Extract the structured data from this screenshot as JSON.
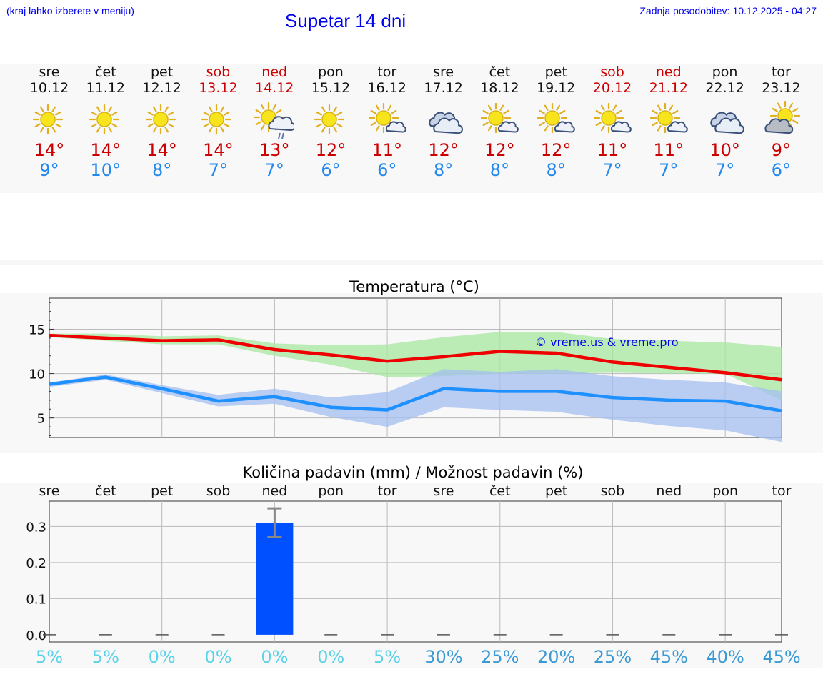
{
  "header": {
    "menu_hint": "(kraj lahko izberete v meniju)",
    "title": "Supetar 14 dni",
    "update_label": "Zadnja posodobitev:",
    "update_value": "10.12.2025 - 04:27"
  },
  "days": [
    {
      "name": "sre",
      "date": "10.12",
      "icon": "sunny-icon",
      "hi": "14°",
      "lo": "9°",
      "weekend": false
    },
    {
      "name": "čet",
      "date": "11.12",
      "icon": "sunny-icon",
      "hi": "14°",
      "lo": "10°",
      "weekend": false
    },
    {
      "name": "pet",
      "date": "12.12",
      "icon": "sunny-icon",
      "hi": "14°",
      "lo": "8°",
      "weekend": false
    },
    {
      "name": "sob",
      "date": "13.12",
      "icon": "sunny-icon",
      "hi": "14°",
      "lo": "7°",
      "weekend": true
    },
    {
      "name": "ned",
      "date": "14.12",
      "icon": "sun-cloud-rain-icon",
      "hi": "13°",
      "lo": "7°",
      "weekend": true
    },
    {
      "name": "pon",
      "date": "15.12",
      "icon": "sunny-icon",
      "hi": "12°",
      "lo": "6°",
      "weekend": false
    },
    {
      "name": "tor",
      "date": "16.12",
      "icon": "sun-small-cloud-icon",
      "hi": "11°",
      "lo": "6°",
      "weekend": false
    },
    {
      "name": "sre",
      "date": "17.12",
      "icon": "cloudy-icon",
      "hi": "12°",
      "lo": "8°",
      "weekend": false
    },
    {
      "name": "čet",
      "date": "18.12",
      "icon": "sun-small-cloud-icon",
      "hi": "12°",
      "lo": "8°",
      "weekend": false
    },
    {
      "name": "pet",
      "date": "19.12",
      "icon": "sun-small-cloud-icon",
      "hi": "12°",
      "lo": "8°",
      "weekend": false
    },
    {
      "name": "sob",
      "date": "20.12",
      "icon": "sun-small-cloud-icon",
      "hi": "11°",
      "lo": "7°",
      "weekend": true
    },
    {
      "name": "ned",
      "date": "21.12",
      "icon": "sun-small-cloud-icon",
      "hi": "11°",
      "lo": "7°",
      "weekend": true
    },
    {
      "name": "pon",
      "date": "22.12",
      "icon": "cloudy-icon",
      "hi": "10°",
      "lo": "7°",
      "weekend": false
    },
    {
      "name": "tor",
      "date": "23.12",
      "icon": "sun-behind-cloud-icon",
      "hi": "9°",
      "lo": "6°",
      "weekend": false
    }
  ],
  "colors": {
    "max_line": "#ee0000",
    "min_line": "#1e90ff",
    "max_band": "#a8e8a0",
    "min_band": "#a4bff0",
    "bar": "#0050ff",
    "watermark": "#0000ee",
    "pct_low": "#5ad2e8",
    "pct_high": "#3a9ad6"
  },
  "chart_data": [
    {
      "type": "line",
      "title": "Temperatura (°C)",
      "categories": [
        "sre",
        "čet",
        "pet",
        "sob",
        "ned",
        "pon",
        "tor",
        "sre",
        "čet",
        "pet",
        "sob",
        "ned",
        "pon",
        "tor"
      ],
      "yticks": [
        5,
        10,
        15
      ],
      "ylim": [
        2.8,
        18.5
      ],
      "watermark": "© vreme.us & vreme.pro",
      "series": [
        {
          "name": "max",
          "values": [
            14.3,
            14.0,
            13.7,
            13.8,
            12.7,
            12.1,
            11.4,
            11.9,
            12.5,
            12.3,
            11.3,
            10.7,
            10.1,
            9.3
          ]
        },
        {
          "name": "min",
          "values": [
            8.8,
            9.6,
            8.3,
            6.9,
            7.4,
            6.2,
            5.9,
            8.3,
            8.0,
            8.0,
            7.3,
            7.0,
            6.9,
            5.8
          ]
        },
        {
          "name": "max_upper",
          "values": [
            14.5,
            14.5,
            14.2,
            14.3,
            13.4,
            13.2,
            13.3,
            14.1,
            14.7,
            14.7,
            13.9,
            13.7,
            13.5,
            13.0
          ]
        },
        {
          "name": "max_lower",
          "values": [
            14.1,
            13.7,
            13.3,
            13.3,
            12.0,
            11.0,
            9.6,
            9.7,
            10.0,
            10.0,
            10.1,
            10.0,
            10.0,
            7.0
          ]
        },
        {
          "name": "min_upper",
          "values": [
            9.0,
            9.9,
            8.7,
            7.6,
            8.3,
            7.3,
            7.9,
            10.5,
            10.2,
            10.5,
            9.7,
            9.3,
            9.0,
            8.0
          ]
        },
        {
          "name": "min_lower",
          "values": [
            8.5,
            9.3,
            7.8,
            6.3,
            6.6,
            5.1,
            4.0,
            6.2,
            5.9,
            5.7,
            4.8,
            4.1,
            3.6,
            2.3
          ]
        }
      ]
    },
    {
      "type": "bar",
      "title": "Količina padavin (mm) / Možnost padavin (%)",
      "categories": [
        "sre",
        "čet",
        "pet",
        "sob",
        "ned",
        "pon",
        "tor",
        "sre",
        "čet",
        "pet",
        "sob",
        "ned",
        "pon",
        "tor"
      ],
      "values": [
        0,
        0,
        0,
        0,
        0.31,
        0,
        0,
        0,
        0,
        0,
        0,
        0,
        0,
        0
      ],
      "error_high": [
        0,
        0,
        0,
        0,
        0.35,
        0,
        0,
        0,
        0,
        0,
        0,
        0,
        0,
        0
      ],
      "error_low": [
        0,
        0,
        0,
        0,
        0.27,
        0,
        0,
        0,
        0,
        0,
        0,
        0,
        0,
        0
      ],
      "yticks": [
        "0.0",
        "0.1",
        "0.2",
        "0.3"
      ],
      "ylim": [
        -0.02,
        0.37
      ],
      "probabilities": [
        "5%",
        "5%",
        "0%",
        "0%",
        "0%",
        "0%",
        "5%",
        "30%",
        "25%",
        "20%",
        "25%",
        "45%",
        "40%",
        "45%"
      ]
    }
  ]
}
